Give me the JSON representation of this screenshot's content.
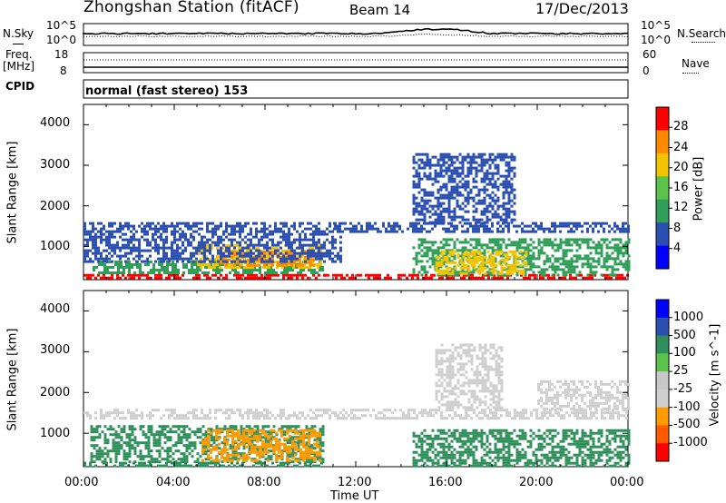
{
  "header": {
    "station": "Zhongshan Station (fitACF)",
    "beam": "Beam 14",
    "date": "17/Dec/2013"
  },
  "noise_panel": {
    "left_label": "N.Sky",
    "right_label": "N.Search",
    "left_ticks": [
      "10^5",
      "10^0"
    ],
    "right_ticks": [
      "10^5",
      "10^0"
    ]
  },
  "freq_panel": {
    "left_label_1": "Freq.",
    "left_label_2": "[MHz]",
    "right_label": "Nave",
    "left_ticks": [
      "18",
      "8"
    ],
    "right_ticks": [
      "60",
      "0"
    ]
  },
  "cpid": {
    "label": "CPID",
    "mode": "normal (fast stereo) 153"
  },
  "axes": {
    "ylabel": "Slant Range [km]",
    "yticks": [
      "4000",
      "3000",
      "2000",
      "1000"
    ],
    "xticks": [
      "00:00",
      "04:00",
      "08:00",
      "12:00",
      "16:00",
      "20:00",
      "00:00"
    ],
    "xlabel": "Time UT"
  },
  "chart_data": [
    {
      "type": "heatmap",
      "quantity": "Power",
      "colorbar_label": "Power [dB]",
      "colorbar_ticks": [
        "28",
        "24",
        "20",
        "16",
        "12",
        "8",
        "4"
      ],
      "colorbar_colors": [
        "#0000ff",
        "#2a4fb0",
        "#2f9f58",
        "#5bc24a",
        "#f2c400",
        "#ff8a00",
        "#ff0000"
      ],
      "ylim": [
        180,
        4500
      ],
      "xlim_hours": [
        0,
        24
      ],
      "regions": [
        {
          "t0": 0.0,
          "t1": 10.6,
          "r0": 200,
          "r1": 320,
          "level": 28
        },
        {
          "t0": 0.4,
          "t1": 10.6,
          "r0": 320,
          "r1": 650,
          "level": 12
        },
        {
          "t0": 5.0,
          "t1": 10.5,
          "r0": 450,
          "r1": 1050,
          "level": 20
        },
        {
          "t0": 6.0,
          "t1": 10.2,
          "r0": 550,
          "r1": 900,
          "level": 24
        },
        {
          "t0": 0.0,
          "t1": 11.3,
          "r0": 650,
          "r1": 1600,
          "level": 8
        },
        {
          "t0": 10.6,
          "t1": 24.0,
          "r0": 220,
          "r1": 320,
          "level": 28
        },
        {
          "t0": 14.5,
          "t1": 24.0,
          "r0": 320,
          "r1": 1200,
          "level": 12
        },
        {
          "t0": 15.5,
          "t1": 19.5,
          "r0": 350,
          "r1": 900,
          "level": 20
        },
        {
          "t0": 11.0,
          "t1": 24.0,
          "r0": 1350,
          "r1": 1600,
          "level": 8
        },
        {
          "t0": 14.5,
          "t1": 19.0,
          "r0": 1600,
          "r1": 3300,
          "level": 8
        }
      ]
    },
    {
      "type": "heatmap",
      "quantity": "Velocity",
      "colorbar_label": "Velocity [m s^-1]",
      "colorbar_ticks": [
        "1000",
        "500",
        "100",
        "25",
        "-25",
        "-100",
        "-500",
        "-1000"
      ],
      "colorbar_colors": [
        "#ff0000",
        "#ff5a00",
        "#ff9a00",
        "#cfcfcf",
        "#c8c8c8",
        "#5bc24a",
        "#2f8f5a",
        "#2a4fb0",
        "#0000ff"
      ],
      "ylim": [
        180,
        4500
      ],
      "xlim_hours": [
        0,
        24
      ],
      "regions": [
        {
          "t0": 0.0,
          "t1": 10.6,
          "r0": 200,
          "r1": 300,
          "level": 100
        },
        {
          "t0": 0.3,
          "t1": 10.6,
          "r0": 300,
          "r1": 1200,
          "level": 100
        },
        {
          "t0": 5.2,
          "t1": 10.4,
          "r0": 300,
          "r1": 1100,
          "level": -100
        },
        {
          "t0": 0.0,
          "t1": 24.0,
          "r0": 1350,
          "r1": 1600,
          "level": 25
        },
        {
          "t0": 14.5,
          "t1": 24.0,
          "r0": 200,
          "r1": 1100,
          "level": 100
        },
        {
          "t0": 15.5,
          "t1": 18.5,
          "r0": 1600,
          "r1": 3200,
          "level": 25
        },
        {
          "t0": 20.0,
          "t1": 24.0,
          "r0": 1600,
          "r1": 2300,
          "level": 25
        }
      ]
    }
  ]
}
